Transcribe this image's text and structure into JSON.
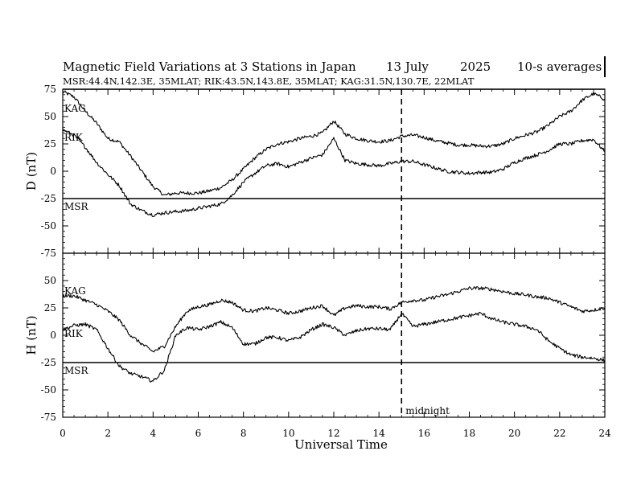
{
  "chart_data": {
    "type": "line",
    "title_parts": {
      "heading": "Magnetic Field Variations at 3 Stations in Japan",
      "date": "13 July",
      "year": "2025",
      "averaging": "10-s averages"
    },
    "subtitle": "MSR:44.4N,142.3E, 35MLAT;  RIK:43.5N,143.8E, 35MLAT;  KAG:31.5N,130.7E, 22MLAT",
    "xlabel": "Universal Time",
    "xlim": [
      0,
      24
    ],
    "x_ticks": [
      "0",
      "2",
      "4",
      "6",
      "8",
      "10",
      "12",
      "14",
      "16",
      "18",
      "20",
      "22",
      "24"
    ],
    "midnight_label": "midnight",
    "midnight_ut": 15,
    "panels": [
      {
        "name": "D",
        "ylabel": "D (nT)",
        "ylim": [
          -75,
          75
        ],
        "y_ticks": [
          "75",
          "50",
          "25",
          "0",
          "-25",
          "-50",
          "-75"
        ],
        "baselines": [
          {
            "name": "KAG",
            "value": 75
          },
          {
            "name": "MSR",
            "value": -25
          }
        ],
        "series": [
          {
            "name": "KAG",
            "label": "KAG",
            "x": [
              0,
              0.5,
              1,
              1.5,
              2,
              2.5,
              3,
              3.5,
              4,
              4.5,
              5,
              5.5,
              6,
              6.5,
              7,
              7.5,
              8,
              8.5,
              9,
              9.5,
              10,
              10.5,
              11,
              11.5,
              12,
              12.5,
              13,
              13.5,
              14,
              14.5,
              15,
              15.5,
              16,
              16.5,
              17,
              17.5,
              18,
              18.5,
              19,
              19.5,
              20,
              20.5,
              21,
              21.5,
              22,
              22.5,
              23,
              23.5,
              24
            ],
            "values": [
              73,
              68,
              55,
              44,
              30,
              27,
              14,
              0,
              -14,
              -22,
              -20,
              -20,
              -20,
              -18,
              -15,
              -8,
              2,
              12,
              20,
              25,
              27,
              30,
              32,
              35,
              46,
              34,
              30,
              28,
              27,
              28,
              32,
              33,
              31,
              28,
              26,
              24,
              24,
              23,
              23,
              25,
              30,
              33,
              36,
              42,
              50,
              55,
              65,
              71,
              66
            ]
          },
          {
            "name": "RIK",
            "label": "RIK",
            "x": [
              0,
              0.5,
              1,
              1.5,
              2,
              2.5,
              3,
              3.5,
              4,
              4.5,
              5,
              5.5,
              6,
              6.5,
              7,
              7.5,
              8,
              8.5,
              9,
              9.5,
              10,
              10.5,
              11,
              11.5,
              12,
              12.5,
              13,
              13.5,
              14,
              14.5,
              15,
              15.5,
              16,
              16.5,
              17,
              17.5,
              18,
              18.5,
              19,
              19.5,
              20,
              20.5,
              21,
              21.5,
              22,
              22.5,
              23,
              23.5,
              24
            ],
            "values": [
              38,
              33,
              22,
              8,
              -3,
              -13,
              -30,
              -36,
              -40,
              -38,
              -37,
              -36,
              -34,
              -32,
              -30,
              -22,
              -10,
              -2,
              5,
              7,
              4,
              8,
              12,
              15,
              30,
              10,
              7,
              6,
              5,
              7,
              9,
              9,
              6,
              3,
              0,
              -1,
              -2,
              -1,
              -1,
              2,
              8,
              12,
              15,
              19,
              25,
              25,
              28,
              29,
              18
            ]
          }
        ]
      },
      {
        "name": "H",
        "ylabel": "H (nT)",
        "ylim": [
          -75,
          75
        ],
        "y_ticks": [
          "50",
          "25",
          "0",
          "-25",
          "-50",
          "-75"
        ],
        "baselines": [
          {
            "name": "MSR",
            "value": -25
          }
        ],
        "series": [
          {
            "name": "KAG",
            "label": "KAG",
            "x": [
              0,
              0.5,
              1,
              1.5,
              2,
              2.5,
              3,
              3.5,
              4,
              4.5,
              5,
              5.5,
              6,
              6.5,
              7,
              7.5,
              8,
              8.5,
              9,
              9.5,
              10,
              10.5,
              11,
              11.5,
              12,
              12.5,
              13,
              13.5,
              14,
              14.5,
              15,
              15.5,
              16,
              16.5,
              17,
              17.5,
              18,
              18.5,
              19,
              19.5,
              20,
              20.5,
              21,
              21.5,
              22,
              22.5,
              23,
              23.5,
              24
            ],
            "values": [
              36,
              36,
              32,
              28,
              22,
              14,
              0,
              -8,
              -15,
              -10,
              8,
              22,
              26,
              28,
              32,
              30,
              23,
              22,
              25,
              23,
              20,
              22,
              25,
              27,
              18,
              25,
              27,
              26,
              26,
              24,
              30,
              32,
              32,
              35,
              37,
              40,
              43,
              43,
              42,
              40,
              38,
              37,
              35,
              34,
              30,
              26,
              22,
              23,
              25
            ]
          },
          {
            "name": "RIK",
            "label": "RIK",
            "x": [
              0,
              0.5,
              1,
              1.5,
              2,
              2.5,
              3,
              3.5,
              4,
              4.5,
              5,
              5.5,
              6,
              6.5,
              7,
              7.5,
              8,
              8.5,
              9,
              9.5,
              10,
              10.5,
              11,
              11.5,
              12,
              12.5,
              13,
              13.5,
              14,
              14.5,
              15,
              15.5,
              16,
              16.5,
              17,
              17.5,
              18,
              18.5,
              19,
              19.5,
              20,
              20.5,
              21,
              21.5,
              22,
              22.5,
              23,
              23.5,
              24
            ],
            "values": [
              5,
              9,
              10,
              5,
              -12,
              -28,
              -35,
              -38,
              -42,
              -32,
              0,
              7,
              5,
              8,
              12,
              7,
              -8,
              -8,
              -2,
              -2,
              -5,
              -2,
              5,
              10,
              7,
              0,
              4,
              6,
              6,
              5,
              20,
              8,
              10,
              12,
              14,
              16,
              18,
              20,
              15,
              12,
              10,
              8,
              5,
              -5,
              -12,
              -18,
              -20,
              -21,
              -23
            ]
          }
        ]
      }
    ]
  }
}
